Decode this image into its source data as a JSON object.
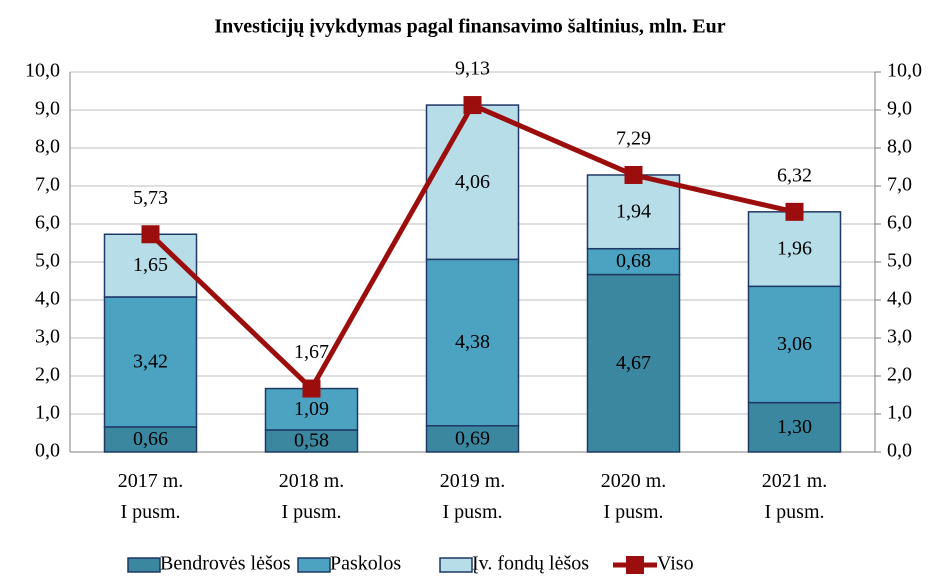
{
  "chart_data": {
    "type": "bar",
    "stacked": true,
    "title": "Investicijų įvykdymas pagal finansavimo šaltinius, mln. Eur",
    "categories": [
      "2017 m. I pusm.",
      "2018 m. I pusm.",
      "2019 m. I pusm.",
      "2020 m. I pusm.",
      "2021 m. I pusm."
    ],
    "ylim": [
      0,
      10
    ],
    "yticks": [
      {
        "value": 0,
        "label": "0,0"
      },
      {
        "value": 1,
        "label": "1,0"
      },
      {
        "value": 2,
        "label": "2,0"
      },
      {
        "value": 3,
        "label": "3,0"
      },
      {
        "value": 4,
        "label": "4,0"
      },
      {
        "value": 5,
        "label": "5,0"
      },
      {
        "value": 6,
        "label": "6,0"
      },
      {
        "value": 7,
        "label": "7,0"
      },
      {
        "value": 8,
        "label": "8,0"
      },
      {
        "value": 9,
        "label": "9,0"
      },
      {
        "value": 10,
        "label": "10,0"
      }
    ],
    "y2lim": [
      0,
      10
    ],
    "y2ticks": [
      {
        "value": 0,
        "label": "0,0"
      },
      {
        "value": 1,
        "label": "1,0"
      },
      {
        "value": 2,
        "label": "2,0"
      },
      {
        "value": 3,
        "label": "3,0"
      },
      {
        "value": 4,
        "label": "4,0"
      },
      {
        "value": 5,
        "label": "5,0"
      },
      {
        "value": 6,
        "label": "6,0"
      },
      {
        "value": 7,
        "label": "7,0"
      },
      {
        "value": 8,
        "label": "8,0"
      },
      {
        "value": 9,
        "label": "9,0"
      },
      {
        "value": 10,
        "label": "10,0"
      }
    ],
    "grid": true,
    "legend": "bottom",
    "series": [
      {
        "name": "Bendrovės lėšos",
        "type": "bar",
        "color": "#3a879f",
        "values": [
          0.66,
          0.58,
          0.69,
          4.67,
          1.3
        ],
        "value_labels": [
          "0,66",
          "0,58",
          "0,69",
          "4,67",
          "1,30"
        ]
      },
      {
        "name": "Paskolos",
        "type": "bar",
        "color": "#4ba3c1",
        "values": [
          3.42,
          1.09,
          4.38,
          0.68,
          3.06
        ],
        "value_labels": [
          "3,42",
          "1,09",
          "4,38",
          "0,68",
          "3,06"
        ]
      },
      {
        "name": "Įv. fondų lėšos",
        "type": "bar",
        "color": "#b7dde9",
        "values": [
          1.65,
          null,
          4.06,
          1.94,
          1.96
        ],
        "value_labels": [
          "1,65",
          null,
          "4,06",
          "1,94",
          "1,96"
        ]
      },
      {
        "name": "Viso",
        "type": "line",
        "color": "#9c0e0e",
        "values": [
          5.73,
          1.67,
          9.13,
          7.29,
          6.32
        ],
        "value_labels": [
          "5,73",
          "1,67",
          "9,13",
          "7,29",
          "6,32"
        ]
      }
    ]
  }
}
